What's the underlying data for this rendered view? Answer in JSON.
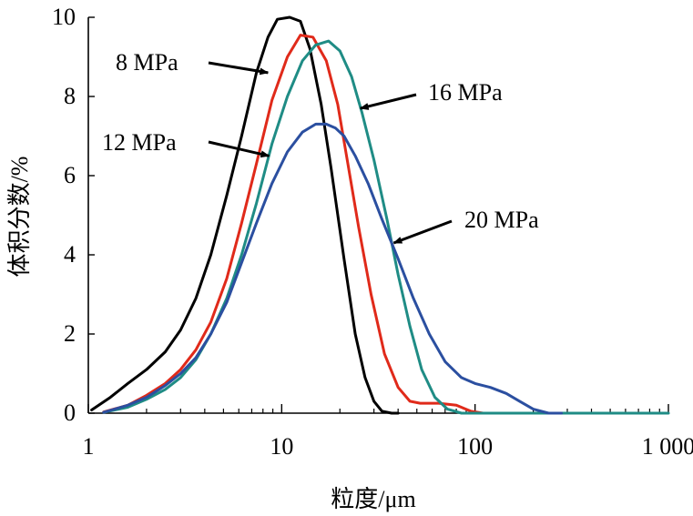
{
  "chart_data": {
    "type": "line",
    "title": "",
    "xlabel": "粒度/μm",
    "ylabel": "体积分数/%",
    "xscale": "log",
    "xlim": [
      1,
      1000
    ],
    "ylim": [
      0,
      10
    ],
    "xticks": [
      {
        "value": 1,
        "label": "1"
      },
      {
        "value": 10,
        "label": "10"
      },
      {
        "value": 100,
        "label": "100"
      },
      {
        "value": 1000,
        "label": "1 000"
      }
    ],
    "yticks": [
      {
        "value": 0,
        "label": "0"
      },
      {
        "value": 2,
        "label": "2"
      },
      {
        "value": 4,
        "label": "4"
      },
      {
        "value": 6,
        "label": "6"
      },
      {
        "value": 8,
        "label": "8"
      },
      {
        "value": 10,
        "label": "10"
      }
    ],
    "grid": false,
    "legend": "none",
    "series": [
      {
        "name": "8 MPa",
        "color": "#000000",
        "x": [
          1.04,
          1.3,
          1.6,
          2.0,
          2.5,
          3.0,
          3.6,
          4.3,
          5.2,
          6.2,
          7.4,
          8.5,
          9.5,
          11.0,
          12.5,
          14.0,
          16.0,
          18.0,
          21.0,
          24.0,
          27.0,
          30.0,
          33.0,
          37.0,
          40.0
        ],
        "y": [
          0.08,
          0.4,
          0.75,
          1.1,
          1.55,
          2.1,
          2.9,
          4.0,
          5.5,
          7.0,
          8.6,
          9.5,
          9.95,
          10.0,
          9.9,
          9.2,
          7.8,
          6.2,
          3.9,
          2.0,
          0.9,
          0.3,
          0.05,
          0.0,
          0.0
        ]
      },
      {
        "name": "12 MPa",
        "color": "#e02a1a",
        "x": [
          1.2,
          1.6,
          2.0,
          2.5,
          3.0,
          3.6,
          4.3,
          5.2,
          6.2,
          7.4,
          8.9,
          10.7,
          12.5,
          14.5,
          17.0,
          19.5,
          22.0,
          25.0,
          29.0,
          34.0,
          40.0,
          46.0,
          52.0,
          65.0,
          80.0,
          95.0,
          110.0
        ],
        "y": [
          0.03,
          0.2,
          0.45,
          0.75,
          1.1,
          1.6,
          2.3,
          3.4,
          4.8,
          6.3,
          7.9,
          9.0,
          9.55,
          9.5,
          8.9,
          7.8,
          6.3,
          4.7,
          3.0,
          1.5,
          0.65,
          0.3,
          0.25,
          0.25,
          0.2,
          0.05,
          0.0
        ]
      },
      {
        "name": "16 MPa",
        "color": "#1f8c85",
        "x": [
          1.2,
          1.6,
          2.0,
          2.5,
          3.0,
          3.6,
          4.3,
          5.2,
          6.2,
          7.4,
          8.9,
          10.7,
          12.8,
          15.0,
          17.5,
          20.0,
          23.0,
          26.0,
          30.0,
          35.0,
          40.0,
          46.0,
          53.0,
          62.0,
          72.0,
          85.0,
          100.0,
          1000.0
        ],
        "y": [
          0.02,
          0.15,
          0.35,
          0.6,
          0.9,
          1.35,
          2.0,
          2.9,
          4.0,
          5.3,
          6.8,
          8.0,
          8.9,
          9.3,
          9.4,
          9.15,
          8.5,
          7.6,
          6.4,
          4.9,
          3.5,
          2.2,
          1.1,
          0.4,
          0.1,
          0.0,
          0.0,
          0.0
        ]
      },
      {
        "name": "20 MPa",
        "color": "#2b4fa0",
        "x": [
          1.2,
          1.6,
          2.0,
          2.5,
          3.0,
          3.6,
          4.3,
          5.2,
          6.2,
          7.4,
          8.9,
          10.7,
          12.8,
          15.0,
          17.0,
          19.0,
          21.0,
          24.0,
          28.0,
          33.0,
          40.0,
          48.0,
          58.0,
          70.0,
          85.0,
          100.0,
          120.0,
          145.0,
          170.0,
          200.0,
          240.0,
          280.0
        ],
        "y": [
          0.02,
          0.2,
          0.4,
          0.7,
          1.0,
          1.4,
          2.0,
          2.8,
          3.8,
          4.8,
          5.8,
          6.6,
          7.1,
          7.3,
          7.3,
          7.2,
          7.0,
          6.5,
          5.8,
          4.9,
          3.9,
          2.9,
          2.0,
          1.3,
          0.9,
          0.75,
          0.65,
          0.5,
          0.3,
          0.1,
          0.0,
          0.0
        ]
      }
    ],
    "annotations": [
      {
        "text": "8 MPa",
        "series": "8 MPa",
        "at_x": 8.5,
        "at_y": 8.6
      },
      {
        "text": "12 MPa",
        "series": "12 MPa",
        "at_x": 8.6,
        "at_y": 6.5
      },
      {
        "text": "16 MPa",
        "series": "16 MPa",
        "at_x": 25.5,
        "at_y": 7.7
      },
      {
        "text": "20 MPa",
        "series": "20 MPa",
        "at_x": 38.0,
        "at_y": 4.3
      }
    ]
  }
}
